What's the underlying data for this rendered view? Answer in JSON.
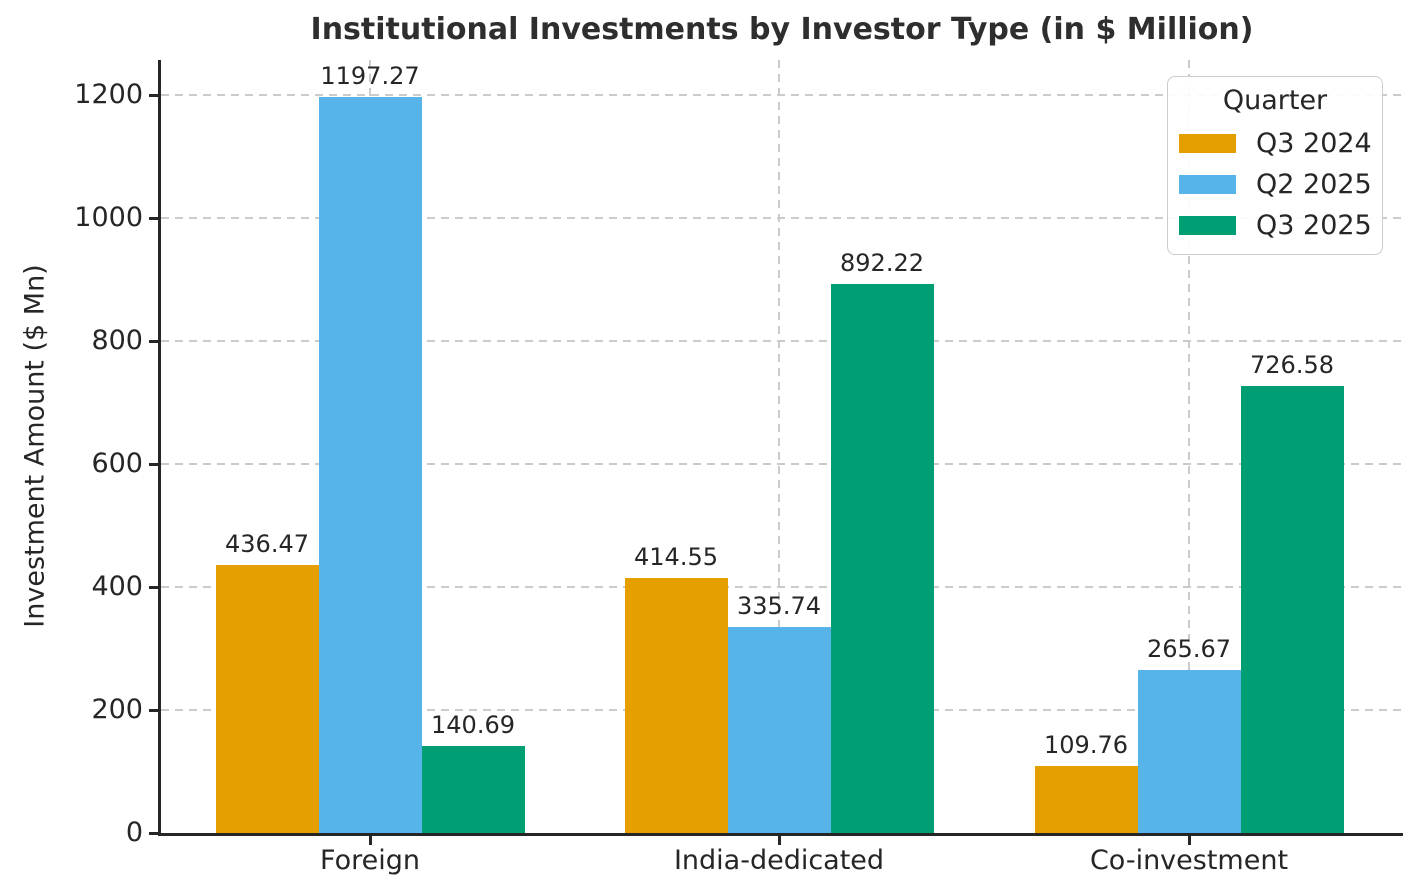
{
  "chart_data": {
    "type": "bar",
    "title": "Institutional Investments by Investor Type (in $ Million)",
    "xlabel": "",
    "ylabel": "Investment Amount ($ Mn)",
    "categories": [
      "Foreign",
      "India-dedicated",
      "Co-investment"
    ],
    "series": [
      {
        "name": "Q3 2024",
        "color": "#E69F00",
        "values": [
          436.47,
          414.55,
          109.76
        ]
      },
      {
        "name": "Q2 2025",
        "color": "#56B4E9",
        "values": [
          1197.27,
          335.74,
          265.67
        ]
      },
      {
        "name": "Q3 2025",
        "color": "#009E73",
        "values": [
          140.69,
          892.22,
          726.58
        ]
      }
    ],
    "legend": {
      "title": "Quarter",
      "position": "upper right"
    },
    "yticks": [
      0,
      200,
      400,
      600,
      800,
      1000,
      1200
    ],
    "ylim": [
      0,
      1257
    ],
    "grid": true,
    "grid_style": "dashed",
    "bar_value_labels": true,
    "colors": {
      "text": "#262626",
      "spine": "#262626",
      "gridline": "#cbcbcb",
      "background": "#ffffff"
    }
  }
}
